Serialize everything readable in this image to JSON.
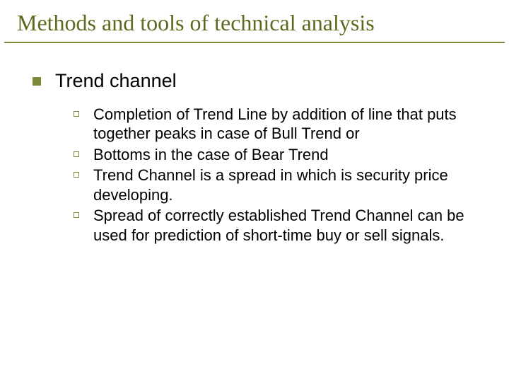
{
  "slide": {
    "title": "Methods and tools of technical analysis",
    "title_color": "#5a6b1e",
    "title_fontfamily": "Times New Roman",
    "title_fontsize": 32,
    "underline_color": "#7a8a3a",
    "background_color": "#ffffff",
    "body_fontfamily": "Arial",
    "level1": {
      "bullet_color": "#7a8a3a",
      "bullet_size": 12,
      "fontsize": 27,
      "text_color": "#000000",
      "items": [
        {
          "text": "Trend channel"
        }
      ]
    },
    "level2": {
      "bullet_border_color": "#7a8a3a",
      "bullet_size": 8,
      "fontsize": 22,
      "text_color": "#000000",
      "items": [
        {
          "text": "Completion of Trend Line by addition of line that puts together peaks in case of Bull Trend or"
        },
        {
          "text": "Bottoms in the case of Bear Trend"
        },
        {
          "text": "Trend Channel is a spread in which is security price developing."
        },
        {
          "text": "Spread of correctly established Trend Channel can be used for prediction of short-time buy or sell signals."
        }
      ]
    }
  }
}
